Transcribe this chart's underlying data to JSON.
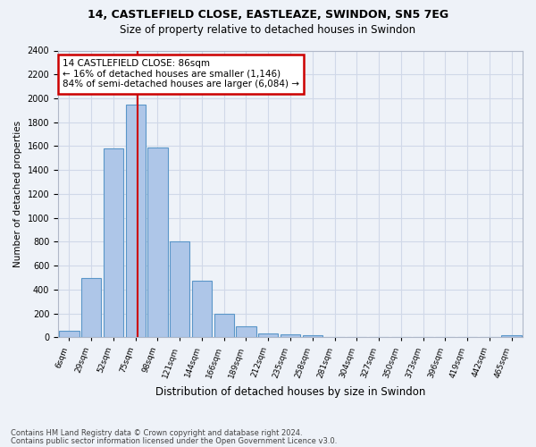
{
  "title_line1": "14, CASTLEFIELD CLOSE, EASTLEAZE, SWINDON, SN5 7EG",
  "title_line2": "Size of property relative to detached houses in Swindon",
  "xlabel": "Distribution of detached houses by size in Swindon",
  "ylabel": "Number of detached properties",
  "footer_line1": "Contains HM Land Registry data © Crown copyright and database right 2024.",
  "footer_line2": "Contains public sector information licensed under the Open Government Licence v3.0.",
  "bins": [
    "6sqm",
    "29sqm",
    "52sqm",
    "75sqm",
    "98sqm",
    "121sqm",
    "144sqm",
    "166sqm",
    "189sqm",
    "212sqm",
    "235sqm",
    "258sqm",
    "281sqm",
    "304sqm",
    "327sqm",
    "350sqm",
    "373sqm",
    "396sqm",
    "419sqm",
    "442sqm",
    "465sqm"
  ],
  "values": [
    55,
    500,
    1580,
    1950,
    1590,
    800,
    475,
    195,
    90,
    35,
    28,
    20,
    5,
    5,
    5,
    5,
    5,
    5,
    5,
    5,
    20
  ],
  "bar_color": "#aec6e8",
  "bar_edge_color": "#5a96c8",
  "grid_color": "#d0d8e8",
  "bg_color": "#eef2f8",
  "annotation_text": "14 CASTLEFIELD CLOSE: 86sqm\n← 16% of detached houses are smaller (1,146)\n84% of semi-detached houses are larger (6,084) →",
  "annotation_box_color": "#ffffff",
  "annotation_box_edge_color": "#cc0000",
  "vline_color": "#cc0000",
  "vline_x": 3.1,
  "ylim": [
    0,
    2400
  ],
  "yticks": [
    0,
    200,
    400,
    600,
    800,
    1000,
    1200,
    1400,
    1600,
    1800,
    2000,
    2200,
    2400
  ]
}
